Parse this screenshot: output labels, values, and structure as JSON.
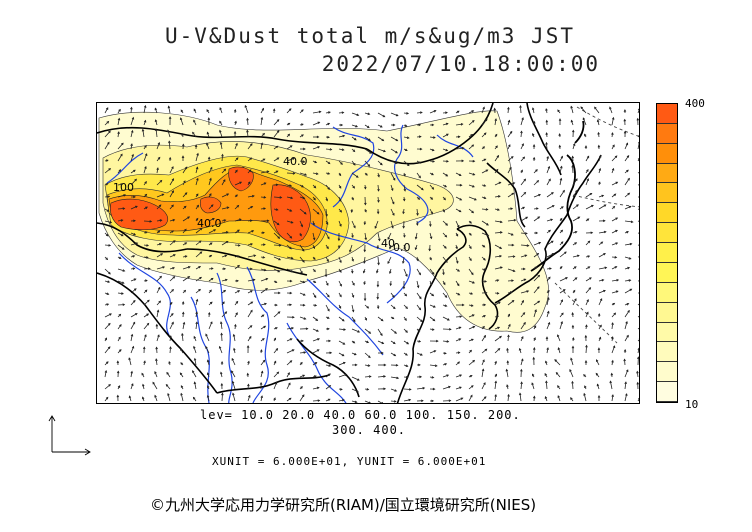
{
  "header": {
    "title": "U-V&Dust total m/s&ug/m3 JST",
    "timestamp": "2022/07/10.18:00:00"
  },
  "colorbar": {
    "max_label": "400",
    "min_label": "10",
    "colors": [
      "#ff5a14",
      "#ff7a10",
      "#ff8f0a",
      "#ffaa14",
      "#ffc41e",
      "#ffd828",
      "#ffe43a",
      "#fff04a",
      "#fff556",
      "#fff87a",
      "#fff892",
      "#fffaa8",
      "#fffbbc",
      "#fffccc",
      "#fffde0"
    ]
  },
  "contours": {
    "levels_line1": "lev= 10.0 20.0 40.0 60.0 100. 150. 200.",
    "levels_line2": "300. 400."
  },
  "map": {
    "contour_labels": [
      "40.0",
      "100",
      "40.0",
      "40",
      "0.0"
    ]
  },
  "units": "XUNIT = 6.000E+01, YUNIT = 6.000E+01",
  "copyright": "©九州大学応用力学研究所(RIAM)/国立環境研究所(NIES)"
}
